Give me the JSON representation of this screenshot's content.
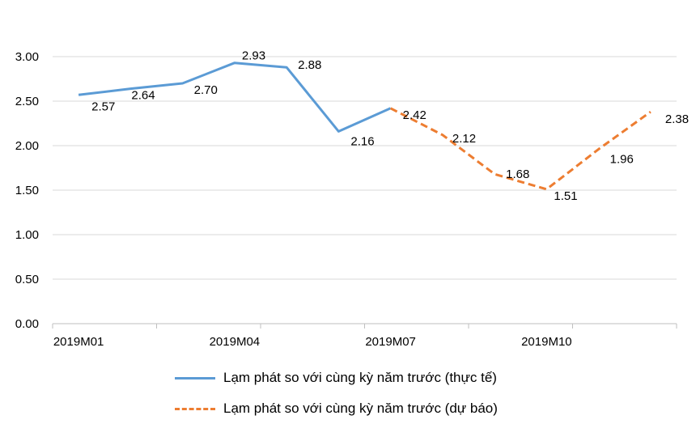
{
  "chart_data": {
    "type": "line",
    "x": [
      "2019M01",
      "2019M02",
      "2019M03",
      "2019M04",
      "2019M05",
      "2019M06",
      "2019M07",
      "2019M08",
      "2019M09",
      "2019M10",
      "2019M11",
      "2019M12"
    ],
    "x_tick_labels": [
      "2019M01",
      "2019M04",
      "2019M07",
      "2019M10"
    ],
    "y_tick_labels": [
      "0.00",
      "0.50",
      "1.00",
      "1.50",
      "2.00",
      "2.50",
      "3.00"
    ],
    "ylim": [
      0,
      3
    ],
    "grid": true,
    "legend_position": "bottom",
    "title": "",
    "xlabel": "",
    "ylabel": "",
    "series": [
      {
        "name": "Lạm phát so với cùng kỳ năm trước (thực tế)",
        "color": "#5b9bd5",
        "style": "solid",
        "values": [
          2.57,
          2.64,
          2.7,
          2.93,
          2.88,
          2.16,
          2.42,
          null,
          null,
          null,
          null,
          null
        ],
        "labels": [
          "2.57",
          "2.64",
          "2.70",
          "2.93",
          "2.88",
          "2.16",
          "2.42",
          null,
          null,
          null,
          null,
          null
        ]
      },
      {
        "name": "Lạm phát so với cùng kỳ năm trước (dự báo)",
        "color": "#ed7d31",
        "style": "dashed",
        "values": [
          null,
          null,
          null,
          null,
          null,
          null,
          2.42,
          2.12,
          1.68,
          1.51,
          1.96,
          2.38
        ],
        "labels": [
          null,
          null,
          null,
          null,
          null,
          null,
          null,
          "2.12",
          "1.68",
          "1.51",
          "1.96",
          "2.38"
        ]
      }
    ]
  }
}
